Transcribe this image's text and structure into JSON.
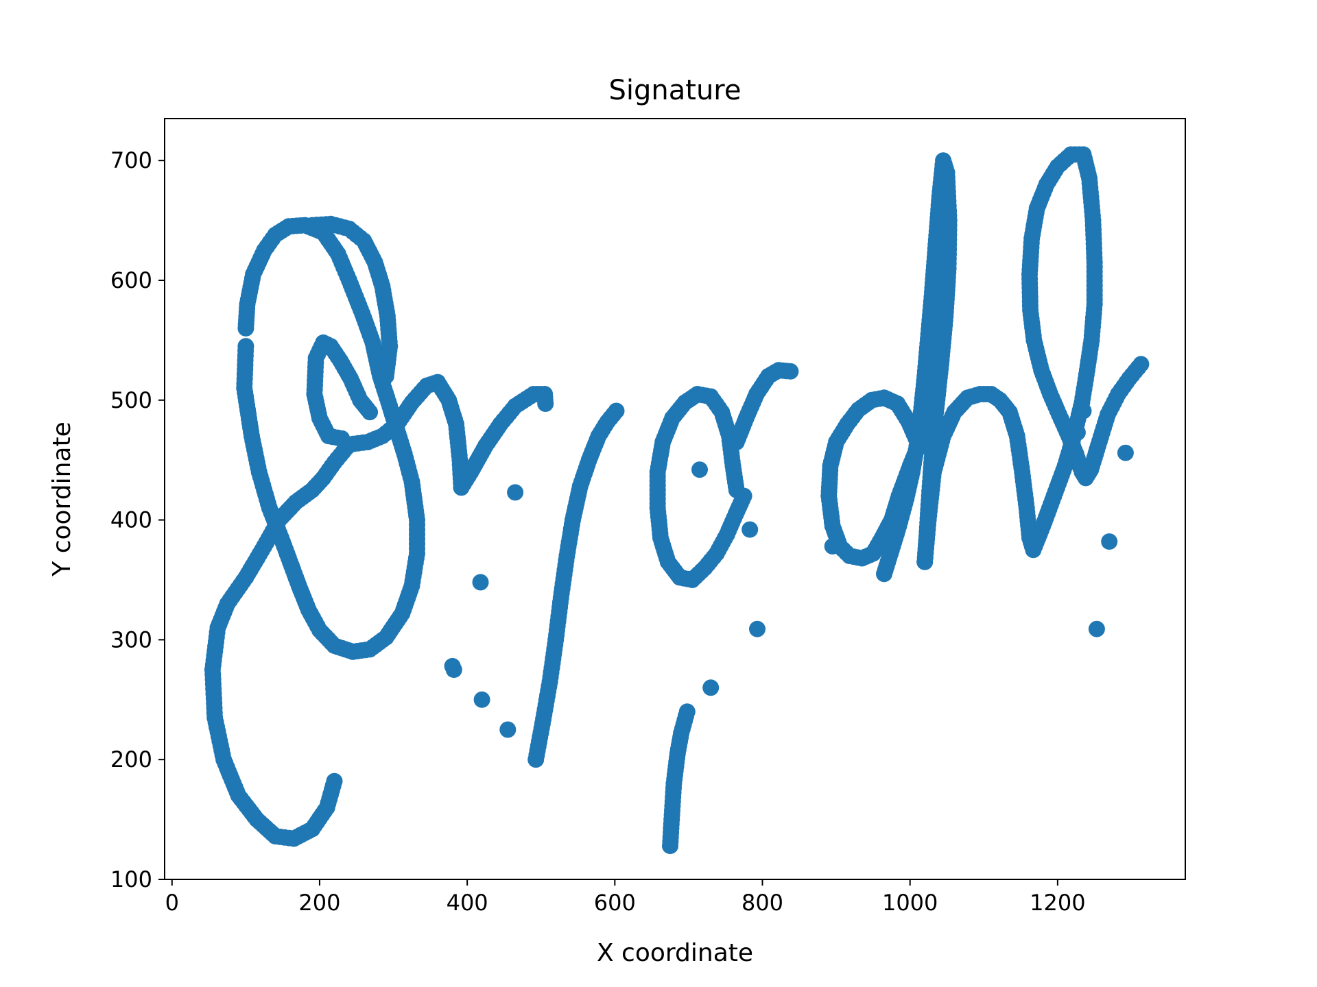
{
  "chart_data": {
    "type": "scatter",
    "title": "Signature",
    "xlabel": "X coordinate",
    "ylabel": "Y coordinate",
    "xlim": [
      -10,
      1373
    ],
    "ylim": [
      100,
      735
    ],
    "xticks": [
      0,
      200,
      400,
      600,
      800,
      1000,
      1200
    ],
    "yticks": [
      100,
      200,
      300,
      400,
      500,
      600,
      700
    ],
    "grid": false,
    "legend": "none",
    "marker_color": "#1f77b4",
    "strokes": [
      [
        [
          220,
          182
        ],
        [
          210,
          160
        ],
        [
          190,
          142
        ],
        [
          165,
          134
        ],
        [
          140,
          136
        ],
        [
          115,
          150
        ],
        [
          90,
          170
        ],
        [
          70,
          200
        ],
        [
          58,
          235
        ],
        [
          55,
          275
        ],
        [
          62,
          310
        ],
        [
          75,
          330
        ],
        [
          100,
          352
        ],
        [
          125,
          378
        ],
        [
          145,
          400
        ],
        [
          168,
          415
        ],
        [
          190,
          425
        ],
        [
          205,
          435
        ],
        [
          220,
          448
        ],
        [
          240,
          463
        ],
        [
          265,
          465
        ],
        [
          285,
          470
        ],
        [
          305,
          480
        ],
        [
          325,
          498
        ],
        [
          345,
          512
        ],
        [
          360,
          515
        ],
        [
          375,
          500
        ],
        [
          385,
          480
        ],
        [
          390,
          450
        ],
        [
          392,
          427
        ],
        [
          405,
          440
        ],
        [
          425,
          462
        ],
        [
          445,
          480
        ],
        [
          465,
          495
        ],
        [
          490,
          505
        ],
        [
          505,
          505
        ],
        [
          506,
          497
        ]
      ],
      [
        [
          100,
          545
        ],
        [
          98,
          510
        ],
        [
          108,
          470
        ],
        [
          118,
          440
        ],
        [
          132,
          410
        ],
        [
          148,
          385
        ],
        [
          160,
          365
        ],
        [
          172,
          345
        ],
        [
          185,
          325
        ],
        [
          200,
          308
        ],
        [
          220,
          295
        ],
        [
          245,
          290
        ],
        [
          268,
          292
        ],
        [
          290,
          302
        ],
        [
          312,
          322
        ],
        [
          325,
          345
        ],
        [
          332,
          372
        ],
        [
          332,
          400
        ],
        [
          325,
          432
        ],
        [
          315,
          455
        ],
        [
          305,
          475
        ],
        [
          295,
          495
        ],
        [
          282,
          520
        ],
        [
          272,
          548
        ],
        [
          258,
          572
        ],
        [
          240,
          600
        ],
        [
          225,
          622
        ],
        [
          205,
          640
        ],
        [
          180,
          646
        ],
        [
          158,
          645
        ],
        [
          140,
          638
        ],
        [
          125,
          625
        ],
        [
          110,
          605
        ],
        [
          102,
          580
        ],
        [
          100,
          560
        ]
      ],
      [
        [
          290,
          520
        ],
        [
          295,
          545
        ],
        [
          292,
          570
        ],
        [
          285,
          595
        ],
        [
          275,
          615
        ],
        [
          260,
          633
        ],
        [
          240,
          643
        ],
        [
          215,
          647
        ],
        [
          190,
          646
        ]
      ],
      [
        [
          268,
          490
        ],
        [
          255,
          500
        ],
        [
          242,
          518
        ],
        [
          228,
          533
        ],
        [
          215,
          545
        ],
        [
          205,
          548
        ],
        [
          195,
          535
        ],
        [
          193,
          505
        ],
        [
          200,
          485
        ],
        [
          212,
          470
        ],
        [
          230,
          468
        ]
      ],
      [
        [
          493,
          200
        ],
        [
          502,
          230
        ],
        [
          512,
          265
        ],
        [
          520,
          300
        ],
        [
          527,
          335
        ],
        [
          535,
          370
        ],
        [
          543,
          400
        ],
        [
          553,
          428
        ],
        [
          565,
          450
        ],
        [
          578,
          470
        ],
        [
          590,
          482
        ],
        [
          602,
          491
        ]
      ],
      [
        [
          675,
          128
        ],
        [
          677,
          150
        ],
        [
          680,
          180
        ],
        [
          685,
          205
        ],
        [
          690,
          222
        ],
        [
          698,
          240
        ]
      ],
      [
        [
          715,
          442
        ]
      ],
      [
        [
          730,
          260
        ]
      ],
      [
        [
          783,
          392
        ]
      ],
      [
        [
          793,
          309
        ]
      ],
      [
        [
          418,
          348
        ]
      ],
      [
        [
          420,
          250
        ]
      ],
      [
        [
          455,
          225
        ]
      ],
      [
        [
          465,
          423
        ]
      ],
      [
        [
          382,
          275
        ]
      ],
      [
        [
          380,
          278
        ]
      ],
      [
        [
          765,
          425
        ],
        [
          760,
          445
        ],
        [
          755,
          470
        ],
        [
          745,
          490
        ],
        [
          730,
          503
        ],
        [
          712,
          505
        ],
        [
          695,
          498
        ],
        [
          678,
          485
        ],
        [
          665,
          465
        ],
        [
          658,
          440
        ],
        [
          658,
          410
        ],
        [
          662,
          385
        ],
        [
          672,
          365
        ],
        [
          688,
          352
        ],
        [
          705,
          350
        ],
        [
          722,
          360
        ],
        [
          738,
          372
        ],
        [
          752,
          388
        ],
        [
          764,
          405
        ],
        [
          775,
          420
        ]
      ],
      [
        [
          765,
          465
        ],
        [
          778,
          485
        ],
        [
          792,
          505
        ],
        [
          808,
          520
        ],
        [
          822,
          525
        ],
        [
          838,
          524
        ]
      ],
      [
        [
          1025,
          470
        ],
        [
          1010,
          460
        ],
        [
          1000,
          445
        ],
        [
          985,
          420
        ],
        [
          975,
          400
        ],
        [
          962,
          385
        ],
        [
          950,
          372
        ],
        [
          935,
          368
        ],
        [
          918,
          370
        ],
        [
          905,
          378
        ],
        [
          895,
          395
        ],
        [
          890,
          420
        ],
        [
          892,
          445
        ],
        [
          900,
          465
        ],
        [
          915,
          480
        ],
        [
          930,
          492
        ],
        [
          948,
          500
        ],
        [
          965,
          502
        ],
        [
          983,
          497
        ],
        [
          998,
          482
        ],
        [
          1010,
          465
        ]
      ],
      [
        [
          965,
          355
        ],
        [
          975,
          375
        ],
        [
          985,
          395
        ],
        [
          995,
          418
        ],
        [
          1003,
          440
        ],
        [
          1010,
          465
        ],
        [
          1015,
          490
        ],
        [
          1020,
          520
        ],
        [
          1025,
          555
        ],
        [
          1030,
          590
        ],
        [
          1035,
          630
        ],
        [
          1040,
          670
        ],
        [
          1045,
          700
        ],
        [
          1050,
          690
        ],
        [
          1053,
          650
        ],
        [
          1052,
          610
        ],
        [
          1048,
          570
        ],
        [
          1042,
          530
        ],
        [
          1035,
          490
        ],
        [
          1030,
          455
        ],
        [
          1026,
          420
        ],
        [
          1023,
          390
        ],
        [
          1020,
          365
        ]
      ],
      [
        [
          1020,
          365
        ],
        [
          1025,
          400
        ],
        [
          1032,
          440
        ],
        [
          1045,
          470
        ],
        [
          1060,
          490
        ],
        [
          1078,
          502
        ],
        [
          1095,
          505
        ],
        [
          1110,
          505
        ],
        [
          1122,
          500
        ],
        [
          1135,
          490
        ],
        [
          1145,
          470
        ],
        [
          1152,
          440
        ],
        [
          1158,
          410
        ],
        [
          1162,
          385
        ],
        [
          1167,
          375
        ],
        [
          1180,
          395
        ],
        [
          1195,
          420
        ],
        [
          1210,
          445
        ],
        [
          1222,
          470
        ],
        [
          1233,
          498
        ],
        [
          1240,
          525
        ],
        [
          1246,
          550
        ],
        [
          1250,
          580
        ],
        [
          1250,
          615
        ],
        [
          1248,
          650
        ],
        [
          1243,
          685
        ],
        [
          1235,
          705
        ],
        [
          1218,
          705
        ],
        [
          1200,
          695
        ],
        [
          1185,
          680
        ],
        [
          1172,
          660
        ],
        [
          1165,
          635
        ],
        [
          1162,
          605
        ],
        [
          1163,
          575
        ],
        [
          1168,
          550
        ],
        [
          1178,
          525
        ],
        [
          1190,
          505
        ],
        [
          1202,
          488
        ],
        [
          1215,
          470
        ],
        [
          1225,
          455
        ],
        [
          1233,
          440
        ],
        [
          1238,
          435
        ],
        [
          1245,
          442
        ],
        [
          1255,
          462
        ],
        [
          1268,
          488
        ],
        [
          1282,
          505
        ],
        [
          1297,
          518
        ],
        [
          1313,
          530
        ]
      ],
      [
        [
          1227,
          473
        ]
      ],
      [
        [
          1235,
          491
        ]
      ],
      [
        [
          1253,
          309
        ]
      ],
      [
        [
          1270,
          382
        ]
      ],
      [
        [
          1292,
          456
        ]
      ],
      [
        [
          895,
          378
        ]
      ]
    ]
  }
}
